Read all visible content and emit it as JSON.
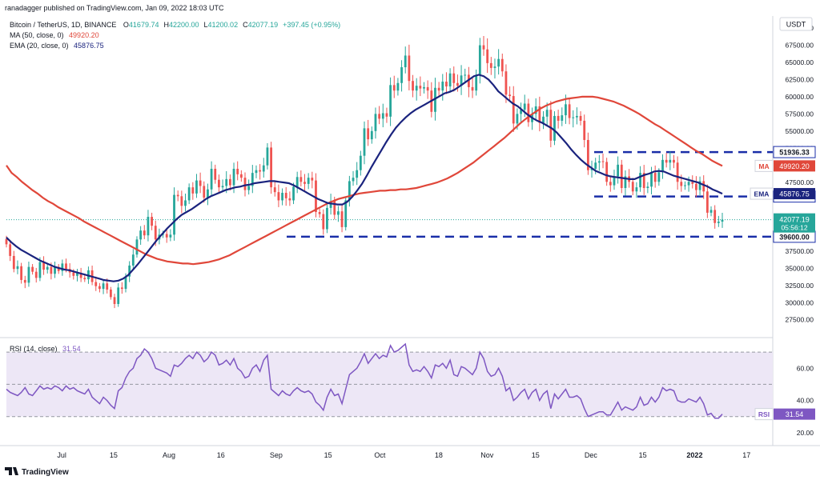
{
  "header": {
    "publisher": "ranadagger published on TradingView.com, Jan 09, 2022 18:03 UTC",
    "symbol": "Bitcoin / TetherUS, 1D, BINANCE",
    "ohlc": [
      {
        "k": "O",
        "v": "41679.74"
      },
      {
        "k": "H",
        "v": "42200.00"
      },
      {
        "k": "L",
        "v": "41200.02"
      },
      {
        "k": "C",
        "v": "42077.19"
      },
      {
        "k": "",
        "v": "+397.45 (+0.95%)"
      }
    ],
    "ma_legend": {
      "label": "MA (50, close, 0)",
      "value": "49920.20"
    },
    "ema_legend": {
      "label": "EMA (20, close, 0)",
      "value": "45876.75"
    },
    "rsi_legend": {
      "label": "RSI (14, close)",
      "value": "31.54"
    },
    "currency": "USDT"
  },
  "footer": {
    "brand": "TradingView"
  },
  "colors": {
    "up": "#26a69a",
    "down": "#ef5350",
    "ma": "#e0473a",
    "ema": "#1a237e",
    "rsi": "#7e57c2",
    "rsi_band": "#ede7f6",
    "dashed": "#1a2ea8",
    "price_label_bg": "#26a69a",
    "axis_text": "#131722"
  },
  "chart_data": [
    {
      "type": "candlestick",
      "title": "Bitcoin / TetherUS, 1D, BINANCE",
      "ylim": [
        25600,
        70600
      ],
      "y_ticks": [
        "27500.00",
        "30000.00",
        "32500.00",
        "35000.00",
        "37500.00",
        "40000.00",
        "42500.00",
        "45000.00",
        "47500.00",
        "50000.00",
        "52500.00",
        "55000.00",
        "57500.00",
        "60000.00",
        "62500.00",
        "65000.00",
        "67500.00",
        "70000.00"
      ],
      "x_ticks": [
        "Jul",
        "15",
        "Aug",
        "16",
        "Sep",
        "15",
        "Oct",
        "18",
        "Nov",
        "15",
        "Dec",
        "15",
        "2022",
        "17"
      ],
      "candles_close": [
        38500,
        36800,
        34900,
        35300,
        33300,
        32900,
        35200,
        34500,
        33600,
        35900,
        34800,
        35200,
        34200,
        35200,
        34600,
        35700,
        34900,
        34400,
        33900,
        34300,
        33600,
        33400,
        34700,
        33000,
        32400,
        32000,
        32800,
        31900,
        30800,
        29800,
        32200,
        32000,
        33800,
        35400,
        37000,
        39200,
        40500,
        39800,
        42500,
        41200,
        39200,
        39900,
        40000,
        39500,
        39900,
        45700,
        45500,
        44100,
        44900,
        46800,
        45900,
        47800,
        47000,
        45300,
        46500,
        49500,
        47900,
        46800,
        47000,
        48000,
        47100,
        49500,
        48700,
        48200,
        46400,
        47000,
        48900,
        49300,
        49100,
        50000,
        52600,
        46800,
        46100,
        44900,
        46000,
        45200,
        44900,
        46900,
        48300,
        47600,
        47300,
        48200,
        47800,
        43200,
        42900,
        40700,
        43800,
        44800,
        42800,
        43300,
        41000,
        44900,
        47700,
        48200,
        49300,
        51400,
        55400,
        53800,
        55000,
        57500,
        56800,
        57600,
        57100,
        61700,
        60900,
        62000,
        64300,
        66000,
        62300,
        60900,
        61600,
        61200,
        61400,
        60900,
        57800,
        61300,
        60900,
        62200,
        61500,
        63400,
        62000,
        61600,
        63100,
        63200,
        61400,
        60900,
        63200,
        67500,
        66900,
        64900,
        64200,
        64400,
        65500,
        63700,
        60300,
        60100,
        56100,
        57500,
        58100,
        59000,
        56300,
        57500,
        58600,
        56200,
        57100,
        58100,
        53600,
        57200,
        56500,
        57300,
        58900,
        56900,
        57000,
        57200,
        56500,
        53700,
        49300,
        49500,
        50400,
        50600,
        50500,
        47600,
        47100,
        48400,
        50100,
        46700,
        48400,
        47600,
        46200,
        46800,
        48900,
        46700,
        46900,
        48900,
        47600,
        49000,
        50800,
        50400,
        50800,
        50400,
        47600,
        47000,
        47100,
        47600,
        47300,
        46400,
        47700,
        46200,
        43100,
        43500,
        41600,
        41800,
        42077
      ],
      "ma50": [
        50000,
        48900,
        48300,
        47600,
        47000,
        46400,
        45900,
        45300,
        44800,
        44400,
        43900,
        43500,
        43100,
        42700,
        42300,
        41800,
        41400,
        41000,
        40600,
        40200,
        39800,
        39400,
        39000,
        38600,
        38200,
        37800,
        37400,
        37000,
        36700,
        36400,
        36200,
        36000,
        35900,
        35800,
        35700,
        35700,
        35600,
        35700,
        35800,
        35900,
        36100,
        36300,
        36600,
        36900,
        37300,
        37700,
        38100,
        38500,
        38900,
        39300,
        39700,
        40100,
        40500,
        40900,
        41300,
        41700,
        42100,
        42500,
        42900,
        43300,
        43700,
        44100,
        44500,
        44800,
        45100,
        45300,
        45500,
        45700,
        45900,
        46000,
        46100,
        46200,
        46300,
        46300,
        46400,
        46400,
        46500,
        46500,
        46600,
        46700,
        46900,
        47100,
        47300,
        47500,
        47800,
        48100,
        48500,
        48900,
        49400,
        49900,
        50400,
        51000,
        51600,
        52200,
        52800,
        53400,
        54000,
        54700,
        55400,
        56100,
        56700,
        57300,
        57800,
        58300,
        58700,
        59000,
        59300,
        59500,
        59700,
        59800,
        59900,
        60000,
        60000,
        60000,
        59900,
        59700,
        59500,
        59300,
        59000,
        58700,
        58300,
        57900,
        57500,
        57000,
        56500,
        56000,
        55600,
        55100,
        54600,
        54100,
        53600,
        53100,
        52600,
        52100,
        51700,
        51200,
        50700,
        50300,
        49920
      ],
      "ema20": [
        39500,
        38800,
        38200,
        37700,
        37300,
        36900,
        36500,
        36100,
        35800,
        35500,
        35200,
        35000,
        34800,
        34700,
        34500,
        34300,
        34100,
        33900,
        33700,
        33500,
        33300,
        33200,
        33100,
        33200,
        33500,
        34000,
        34800,
        35600,
        36500,
        37400,
        38300,
        39200,
        40000,
        40800,
        41500,
        42200,
        42800,
        43200,
        43600,
        44100,
        44600,
        45100,
        45500,
        45800,
        46100,
        46400,
        46600,
        46800,
        46900,
        47100,
        47200,
        47400,
        47500,
        47600,
        47700,
        47700,
        47600,
        47500,
        47400,
        47100,
        46700,
        46300,
        45900,
        45500,
        45100,
        44800,
        44500,
        44400,
        44300,
        44300,
        44700,
        45400,
        46300,
        47300,
        48500,
        49800,
        51000,
        52200,
        53400,
        54500,
        55500,
        56300,
        57000,
        57600,
        58100,
        58500,
        58900,
        59300,
        59700,
        60100,
        60500,
        60700,
        61000,
        61500,
        62000,
        62500,
        63000,
        63200,
        63000,
        62500,
        61700,
        60800,
        60200,
        59600,
        59000,
        58600,
        58000,
        57400,
        56900,
        56500,
        56200,
        55800,
        55400,
        54800,
        54000,
        53200,
        52300,
        51500,
        50800,
        50200,
        49700,
        49200,
        48900,
        48600,
        48400,
        48300,
        48200,
        48100,
        48000,
        48000,
        48300,
        48600,
        48800,
        49100,
        49200,
        49100,
        48800,
        48500,
        48300,
        48100,
        47900,
        47700,
        47500,
        47200,
        46900,
        46500,
        46200,
        45876
      ],
      "levels": [
        {
          "label": "51936.33",
          "value": 51936.33
        },
        {
          "label": "45456.00",
          "value": 45456.0
        },
        {
          "label": "39600.00",
          "value": 39600.0
        }
      ],
      "right_labels": [
        {
          "label": "MA",
          "value": "49920.20",
          "y": 49920.2
        },
        {
          "label": "EMA",
          "value": "45876.75",
          "y": 45876.75
        },
        {
          "label": "",
          "value": "42077.19",
          "y": 42077.19,
          "sub": "05:56:12"
        }
      ]
    },
    {
      "type": "line",
      "title": "RSI (14, close)",
      "ylim": [
        14,
        76
      ],
      "y_ticks": [
        "20.00",
        "40.00",
        "60.00"
      ],
      "band": [
        30,
        70
      ],
      "rsi": [
        47,
        45,
        44,
        43,
        45,
        48,
        44,
        43,
        46,
        49,
        47,
        48,
        47,
        49,
        48,
        46,
        49,
        47,
        48,
        46,
        45,
        44,
        47,
        42,
        40,
        38,
        42,
        40,
        37,
        35,
        46,
        48,
        54,
        58,
        60,
        66,
        68,
        72,
        70,
        66,
        60,
        59,
        58,
        57,
        55,
        62,
        61,
        63,
        66,
        68,
        66,
        70,
        68,
        64,
        66,
        70,
        68,
        62,
        63,
        65,
        62,
        66,
        60,
        58,
        54,
        55,
        60,
        62,
        58,
        65,
        68,
        47,
        45,
        43,
        46,
        44,
        43,
        46,
        48,
        46,
        45,
        46,
        44,
        39,
        37,
        34,
        42,
        47,
        43,
        44,
        38,
        47,
        56,
        58,
        60,
        64,
        69,
        63,
        66,
        69,
        66,
        68,
        67,
        74,
        70,
        71,
        73,
        75,
        62,
        58,
        59,
        58,
        61,
        58,
        54,
        62,
        61,
        63,
        60,
        65,
        56,
        55,
        61,
        60,
        58,
        56,
        60,
        70,
        66,
        58,
        55,
        56,
        60,
        55,
        46,
        48,
        40,
        42,
        45,
        47,
        41,
        45,
        47,
        40,
        44,
        46,
        35,
        44,
        41,
        44,
        47,
        42,
        42,
        43,
        41,
        35,
        30,
        31,
        32,
        33,
        33,
        31,
        31,
        35,
        39,
        34,
        36,
        35,
        34,
        36,
        42,
        37,
        38,
        42,
        39,
        42,
        48,
        46,
        47,
        46,
        40,
        39,
        39,
        41,
        40,
        39,
        42,
        38,
        31,
        32,
        29,
        29,
        31.54
      ],
      "value_label": {
        "label": "RSI",
        "value": "31.54"
      }
    }
  ]
}
